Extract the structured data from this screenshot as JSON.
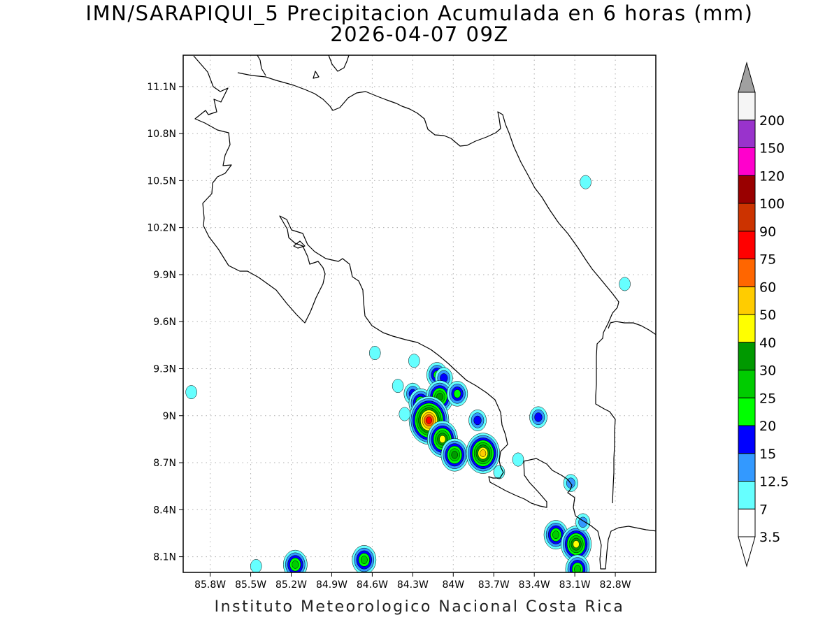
{
  "title": "IMN/SARAPIQUI_5 Precipitacion Acumulada en 6 horas (mm)",
  "subtitle": "2026-04-07 09Z",
  "footer": "Instituto Meteorologico Nacional Costa Rica",
  "map": {
    "lon_range": [
      -86.0,
      -82.5
    ],
    "lat_range": [
      8.0,
      11.3
    ],
    "lon_ticks": [
      {
        "value": -85.8,
        "label": "85.8W"
      },
      {
        "value": -85.5,
        "label": "85.5W"
      },
      {
        "value": -85.2,
        "label": "85.2W"
      },
      {
        "value": -84.9,
        "label": "84.9W"
      },
      {
        "value": -84.6,
        "label": "84.6W"
      },
      {
        "value": -84.3,
        "label": "84.3W"
      },
      {
        "value": -84.0,
        "label": "84W"
      },
      {
        "value": -83.7,
        "label": "83.7W"
      },
      {
        "value": -83.4,
        "label": "83.4W"
      },
      {
        "value": -83.1,
        "label": "83.1W"
      },
      {
        "value": -82.8,
        "label": "82.8W"
      }
    ],
    "lat_ticks": [
      {
        "value": 11.1,
        "label": "11.1N"
      },
      {
        "value": 10.8,
        "label": "10.8N"
      },
      {
        "value": 10.5,
        "label": "10.5N"
      },
      {
        "value": 10.2,
        "label": "10.2N"
      },
      {
        "value": 9.9,
        "label": "9.9N"
      },
      {
        "value": 9.6,
        "label": "9.6N"
      },
      {
        "value": 9.3,
        "label": "9.3N"
      },
      {
        "value": 9.0,
        "label": "9N"
      },
      {
        "value": 8.7,
        "label": "8.7N"
      },
      {
        "value": 8.4,
        "label": "8.4N"
      },
      {
        "value": 8.1,
        "label": "8.1N"
      }
    ],
    "grid": true
  },
  "colorbar": {
    "levels": [
      {
        "label": "3.5",
        "color": "#ffffff"
      },
      {
        "label": "7",
        "color": "#66ffff"
      },
      {
        "label": "12.5",
        "color": "#3399ff"
      },
      {
        "label": "15",
        "color": "#0000ff"
      },
      {
        "label": "20",
        "color": "#00ff00"
      },
      {
        "label": "25",
        "color": "#00cc00"
      },
      {
        "label": "30",
        "color": "#009900"
      },
      {
        "label": "40",
        "color": "#ffff00"
      },
      {
        "label": "50",
        "color": "#ffcc00"
      },
      {
        "label": "60",
        "color": "#ff6600"
      },
      {
        "label": "75",
        "color": "#ff0000"
      },
      {
        "label": "90",
        "color": "#cc3300"
      },
      {
        "label": "100",
        "color": "#990000"
      },
      {
        "label": "120",
        "color": "#ff00cc"
      },
      {
        "label": "150",
        "color": "#9933cc"
      },
      {
        "label": "200",
        "color": "#f5f5f5"
      }
    ],
    "over_color": "#a0a0a0",
    "under_color": "#ffffff"
  },
  "precip_cells": [
    {
      "lon": -84.29,
      "lat": 9.35,
      "lvl": 1
    },
    {
      "lon": -84.12,
      "lat": 9.26,
      "lvl": 4
    },
    {
      "lon": -84.07,
      "lat": 9.24,
      "lvl": 3
    },
    {
      "lon": -84.3,
      "lat": 9.14,
      "lvl": 3
    },
    {
      "lon": -84.24,
      "lat": 9.08,
      "lvl": 5
    },
    {
      "lon": -84.1,
      "lat": 9.12,
      "lvl": 6
    },
    {
      "lon": -83.97,
      "lat": 9.14,
      "lvl": 4
    },
    {
      "lon": -84.18,
      "lat": 8.97,
      "lvl": 10
    },
    {
      "lon": -84.08,
      "lat": 8.85,
      "lvl": 7
    },
    {
      "lon": -83.99,
      "lat": 8.75,
      "lvl": 6
    },
    {
      "lon": -83.78,
      "lat": 8.76,
      "lvl": 8
    },
    {
      "lon": -83.82,
      "lat": 8.97,
      "lvl": 3
    },
    {
      "lon": -84.36,
      "lat": 9.01,
      "lvl": 1
    },
    {
      "lon": -83.37,
      "lat": 8.99,
      "lvl": 3
    },
    {
      "lon": -83.24,
      "lat": 8.24,
      "lvl": 5
    },
    {
      "lon": -83.09,
      "lat": 8.18,
      "lvl": 7
    },
    {
      "lon": -83.08,
      "lat": 8.02,
      "lvl": 5
    },
    {
      "lon": -85.17,
      "lat": 8.05,
      "lvl": 5
    },
    {
      "lon": -84.66,
      "lat": 8.08,
      "lvl": 5
    },
    {
      "lon": -83.04,
      "lat": 8.32,
      "lvl": 2
    },
    {
      "lon": -83.13,
      "lat": 8.57,
      "lvl": 2
    },
    {
      "lon": -85.46,
      "lat": 8.04,
      "lvl": 1
    },
    {
      "lon": -83.66,
      "lat": 8.64,
      "lvl": 1
    },
    {
      "lon": -83.52,
      "lat": 8.72,
      "lvl": 1
    },
    {
      "lon": -84.58,
      "lat": 9.4,
      "lvl": 1
    },
    {
      "lon": -84.41,
      "lat": 9.19,
      "lvl": 1
    },
    {
      "lon": -82.73,
      "lat": 9.84,
      "lvl": 1
    },
    {
      "lon": -83.02,
      "lat": 10.49,
      "lvl": 1
    },
    {
      "lon": -85.94,
      "lat": 9.15,
      "lvl": 1
    }
  ]
}
